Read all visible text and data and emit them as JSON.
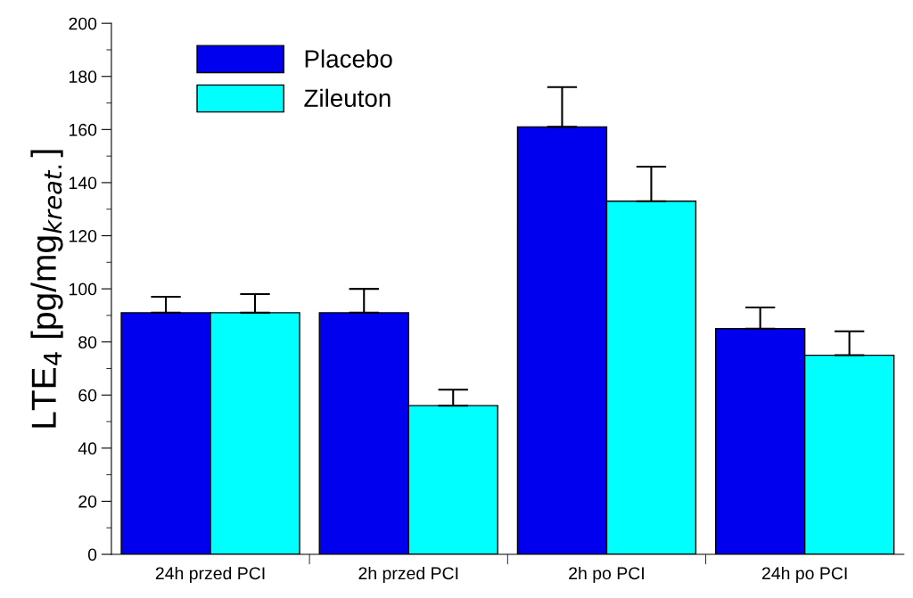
{
  "chart_data": {
    "type": "bar",
    "ylabel": "LTE$_{4}$ [pg/mg$_{kreat.}$]",
    "categories": [
      "24h przed PCI",
      "2h przed PCI",
      "2h po PCI",
      "24h po PCI"
    ],
    "series": [
      {
        "name": "Placebo",
        "color": "#0000ee",
        "values": [
          91,
          91,
          161,
          85
        ],
        "errors": [
          [
            91,
            97
          ],
          [
            91,
            100
          ],
          [
            161,
            176
          ],
          [
            85,
            93
          ]
        ]
      },
      {
        "name": "Zileuton",
        "color": "#00ffff",
        "values": [
          91,
          56,
          133,
          75
        ],
        "errors": [
          [
            91,
            98
          ],
          [
            56,
            62
          ],
          [
            133,
            146
          ],
          [
            75,
            84
          ]
        ]
      }
    ],
    "ylim": [
      0,
      200
    ],
    "yticks": [
      0,
      20,
      40,
      60,
      80,
      100,
      120,
      140,
      160,
      180,
      200
    ],
    "grid": false,
    "legend": "top left"
  }
}
